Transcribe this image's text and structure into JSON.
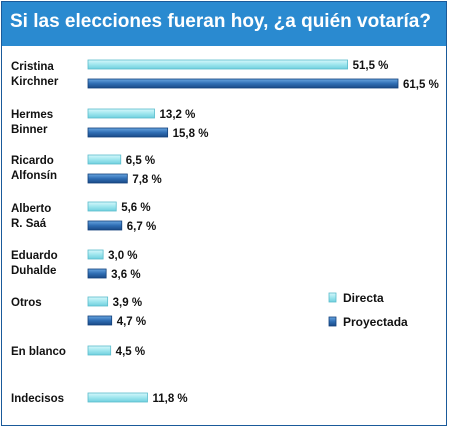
{
  "title": "Si las elecciones fueran hoy, ¿a quién votaría?",
  "colors": {
    "header": "#2a8ad0",
    "directa": "#9fe6ee",
    "proyectada": "#2f6eb4",
    "border": "#1a5a9a"
  },
  "chart_data": {
    "type": "bar",
    "orientation": "horizontal",
    "title": "Si las elecciones fueran hoy, ¿a quién votaría?",
    "legend_position": "right",
    "categories": [
      [
        "Cristina",
        "Kirchner"
      ],
      [
        "Hermes",
        "Binner"
      ],
      [
        "Ricardo",
        "Alfonsín"
      ],
      [
        "Alberto",
        "R. Saá"
      ],
      [
        "Eduardo",
        "Duhalde"
      ],
      [
        "Otros"
      ],
      [
        "En blanco"
      ],
      [
        "Indecisos"
      ]
    ],
    "series": [
      {
        "name": "Directa",
        "values": [
          51.5,
          13.2,
          6.5,
          5.6,
          3.0,
          3.9,
          4.5,
          11.8
        ],
        "labels": [
          "51,5 %",
          "13,2 %",
          "6,5 %",
          "5,6 %",
          "3,0 %",
          "3,9 %",
          "4,5 %",
          "11,8 %"
        ]
      },
      {
        "name": "Proyectada",
        "values": [
          61.5,
          15.8,
          7.8,
          6.7,
          3.6,
          4.7,
          null,
          null
        ],
        "labels": [
          "61,5 %",
          "15,8 %",
          "7,8 %",
          "6,7 %",
          "3,6 %",
          "4,7 %",
          null,
          null
        ]
      }
    ],
    "xlim": [
      0,
      61.5
    ]
  }
}
